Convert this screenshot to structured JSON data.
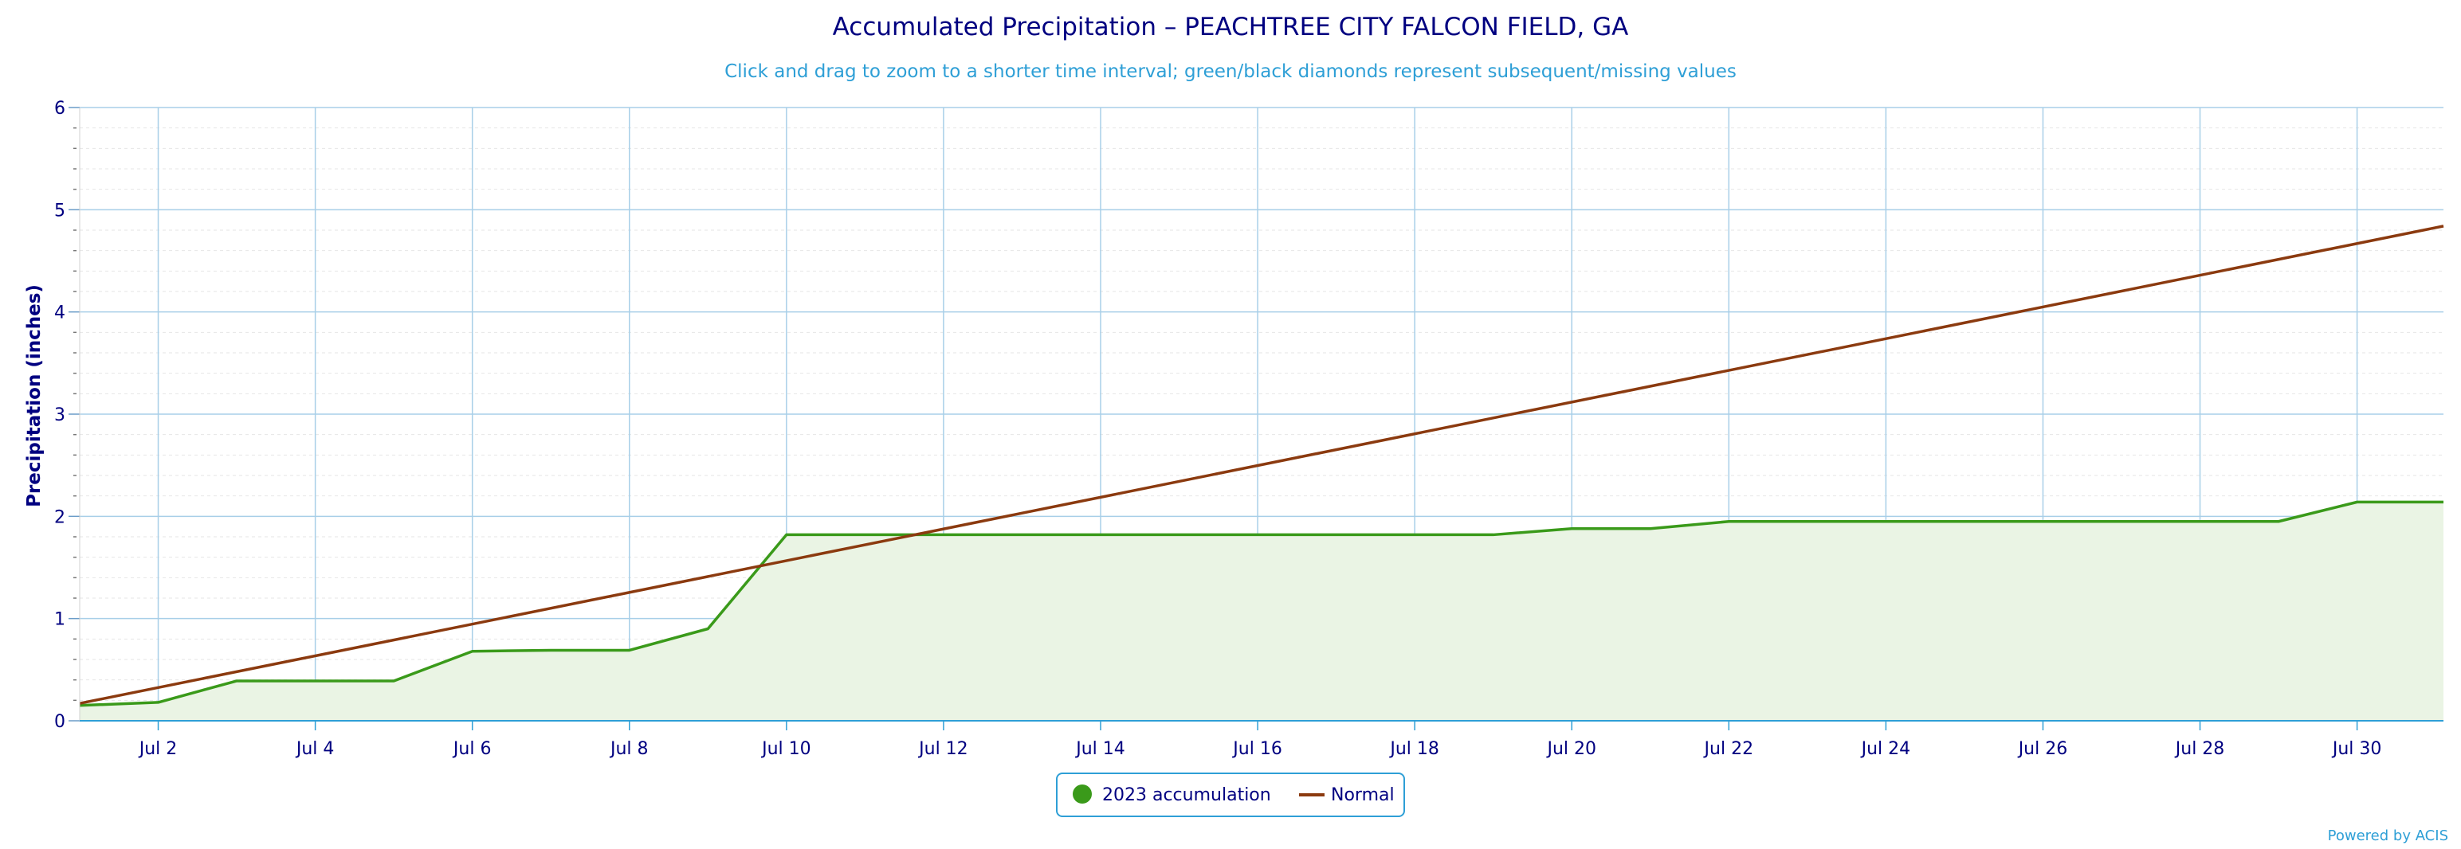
{
  "chart_data": {
    "type": "line",
    "title": "Accumulated Precipitation – PEACHTREE CITY FALCON FIELD, GA",
    "subtitle": "Click and drag to zoom to a shorter time interval; green/black diamonds represent subsequent/missing values",
    "ylabel": "Precipitation (inches)",
    "xlabel": "",
    "ylim": [
      0,
      6
    ],
    "yticks": [
      "0",
      "1",
      "2",
      "3",
      "4",
      "5",
      "6"
    ],
    "x_range_days": [
      1,
      31.1
    ],
    "xtick_days": [
      2,
      4,
      6,
      8,
      10,
      12,
      14,
      16,
      18,
      20,
      22,
      24,
      26,
      28,
      30
    ],
    "xtick_labels": [
      "Jul 2",
      "Jul 4",
      "Jul 6",
      "Jul 8",
      "Jul 10",
      "Jul 12",
      "Jul 14",
      "Jul 16",
      "Jul 18",
      "Jul 20",
      "Jul 22",
      "Jul 24",
      "Jul 26",
      "Jul 28",
      "Jul 30"
    ],
    "grid": true,
    "legend_position": "bottom-center",
    "series": [
      {
        "name": "2023 accumulation",
        "color": "#3a9a1a",
        "fill": "#eaf4e4",
        "style": "area",
        "x": [
          1,
          2,
          3,
          4,
          5,
          6,
          7,
          8,
          9,
          10,
          11,
          12,
          13,
          14,
          15,
          16,
          17,
          18,
          19,
          20,
          21,
          22,
          23,
          24,
          25,
          26,
          27,
          28,
          29,
          30,
          31
        ],
        "values": [
          0.15,
          0.18,
          0.39,
          0.39,
          0.39,
          0.68,
          0.69,
          0.69,
          0.9,
          1.82,
          1.82,
          1.82,
          1.82,
          1.82,
          1.82,
          1.82,
          1.82,
          1.82,
          1.82,
          1.88,
          1.88,
          1.95,
          1.95,
          1.95,
          1.95,
          1.95,
          1.95,
          1.95,
          1.95,
          2.14,
          2.14
        ]
      },
      {
        "name": "Normal",
        "color": "#8b3a0f",
        "style": "line",
        "x": [
          1,
          31.1
        ],
        "values": [
          0.17,
          4.84
        ]
      }
    ]
  },
  "credits": "Powered by ACIS",
  "colors": {
    "grid_major": "#a8cfe8",
    "grid_minor": "#e6e6e6",
    "axis": "#2e9fd6",
    "legend_border": "#2e9fd6"
  }
}
